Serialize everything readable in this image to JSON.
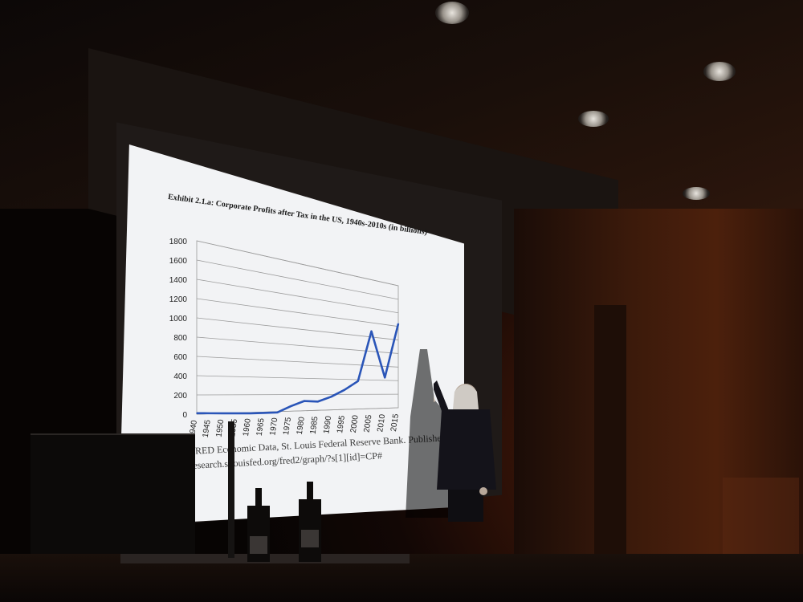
{
  "slide": {
    "title": "Exhibit 2.1.a: Corporate Profits after Tax in the US, 1940s-2010s (in billions)",
    "caption_line1": "FRED Economic Data, St. Louis Federal Reserve Bank.  Published 2012",
    "caption_line2": "research.stlouisfed.org/fred2/graph/?s[1][id]=CP#"
  },
  "chart_data": {
    "type": "line",
    "title": "Exhibit 2.1.a: Corporate Profits after Tax in the US, 1940s-2010s (in billions)",
    "x": [
      1940,
      1945,
      1950,
      1955,
      1960,
      1965,
      1970,
      1975,
      1980,
      1985,
      1990,
      1995,
      2000,
      2005,
      2010,
      2015
    ],
    "x_tick_labels": [
      "1940",
      "1945",
      "1950",
      "1955",
      "1960",
      "1965",
      "1970",
      "1975",
      "1980",
      "1985",
      "1990",
      "1995",
      "2000",
      "2005",
      "2010",
      "2015"
    ],
    "series": [
      {
        "values": [
          10,
          5,
          0,
          -5,
          -10,
          -10,
          -10,
          60,
          120,
          110,
          170,
          260,
          380,
          1080,
          440,
          1240
        ]
      }
    ],
    "ylim": [
      0,
      1800
    ],
    "y_ticks": [
      0,
      200,
      400,
      600,
      800,
      1000,
      1200,
      1400,
      1600,
      1800
    ],
    "xlabel": "",
    "ylabel": "",
    "grid": true,
    "line_color": "#2a55b8"
  }
}
